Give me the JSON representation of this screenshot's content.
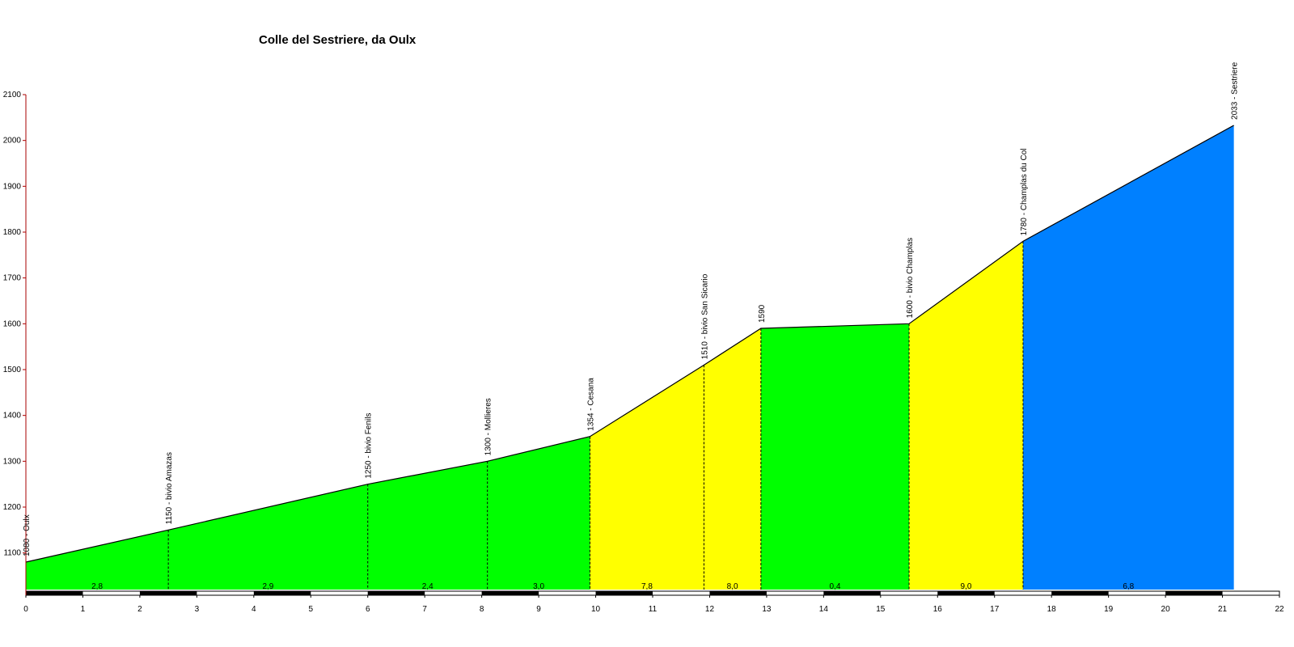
{
  "chart_data": {
    "type": "area",
    "title": "Colle del Sestriere, da Oulx",
    "xlabel": "",
    "ylabel": "",
    "xlim": [
      0,
      22
    ],
    "ylim": [
      1020,
      2100
    ],
    "x_ticks": [
      0,
      1,
      2,
      3,
      4,
      5,
      6,
      7,
      8,
      9,
      10,
      11,
      12,
      13,
      14,
      15,
      16,
      17,
      18,
      19,
      20,
      21,
      22
    ],
    "y_ticks": [
      1100,
      1200,
      1300,
      1400,
      1500,
      1600,
      1700,
      1800,
      1900,
      2000,
      2100
    ],
    "points": [
      {
        "x": 0,
        "y": 1080,
        "label": "1080 - Oulx"
      },
      {
        "x": 2.5,
        "y": 1150,
        "label": "1150 - bivio Amazas"
      },
      {
        "x": 6,
        "y": 1250,
        "label": "1250 - bivio Fenils"
      },
      {
        "x": 8.1,
        "y": 1300,
        "label": "1300 - Mollieres"
      },
      {
        "x": 9.9,
        "y": 1354,
        "label": "1354 - Cesana"
      },
      {
        "x": 11.9,
        "y": 1510,
        "label": "1510 - bivio San Sicario"
      },
      {
        "x": 12.9,
        "y": 1590,
        "label": "1590"
      },
      {
        "x": 15.5,
        "y": 1600,
        "label": "1600 - bivio Champlas"
      },
      {
        "x": 17.5,
        "y": 1780,
        "label": "1780 - Champlas du Col"
      },
      {
        "x": 21.2,
        "y": 2033,
        "label": "2033 - Sestriere"
      }
    ],
    "segments": [
      {
        "from": 0,
        "to": 2.5,
        "grade": "2,8",
        "color": "#00ff00"
      },
      {
        "from": 2.5,
        "to": 6,
        "grade": "2,9",
        "color": "#00ff00"
      },
      {
        "from": 6,
        "to": 8.1,
        "grade": "2,4",
        "color": "#00ff00"
      },
      {
        "from": 8.1,
        "to": 9.9,
        "grade": "3,0",
        "color": "#00ff00"
      },
      {
        "from": 9.9,
        "to": 11.9,
        "grade": "7,8",
        "color": "#ffff00"
      },
      {
        "from": 11.9,
        "to": 12.9,
        "grade": "8,0",
        "color": "#ffff00"
      },
      {
        "from": 12.9,
        "to": 15.5,
        "grade": "0,4",
        "color": "#00ff00"
      },
      {
        "from": 15.5,
        "to": 17.5,
        "grade": "9,0",
        "color": "#ffff00"
      },
      {
        "from": 17.5,
        "to": 21.2,
        "grade": "6,8",
        "color": "#0080ff"
      }
    ],
    "grid": false,
    "legend": "none",
    "colors": {
      "gentle": "#00ff00",
      "steep": "#ffff00",
      "hard": "#0080ff",
      "y_axis": "#aa0000",
      "profile_line": "#000000"
    }
  }
}
